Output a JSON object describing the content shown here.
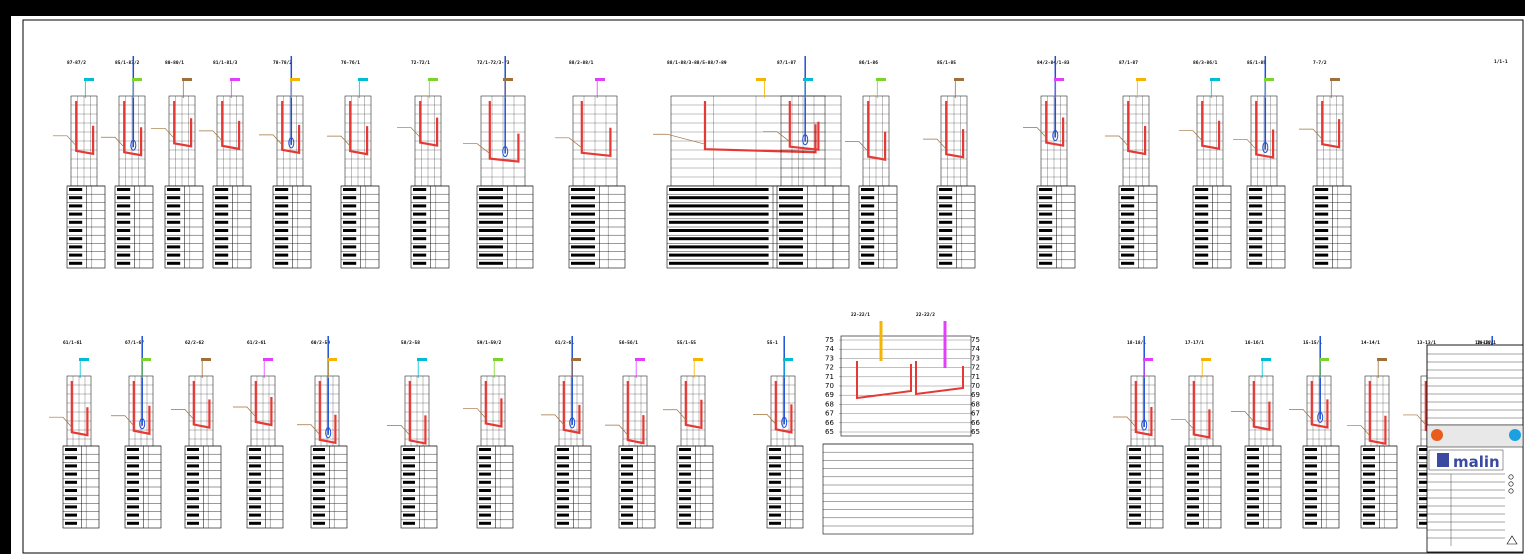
{
  "drawing": {
    "sheet_label": "1/1-1",
    "logo_text": "malin",
    "palette": {
      "pipe": "#e53935",
      "water": "#1e4fd6",
      "cyan": "#00bcd4",
      "green": "#7cd32c",
      "brown": "#a0703c",
      "magenta": "#e040fb",
      "yellow": "#f4b400"
    },
    "profile_scale": {
      "ticks": [
        "75",
        "74",
        "73",
        "72",
        "71",
        "70",
        "69",
        "68",
        "67",
        "66",
        "65"
      ],
      "ticks2": [
        "75",
        "74",
        "73",
        "72",
        "71",
        "70",
        "69",
        "68",
        "67",
        "66",
        "65"
      ]
    },
    "row1": [
      {
        "label": "87-87/2"
      },
      {
        "label": "85/1-83/2"
      },
      {
        "label": "80-80/1"
      },
      {
        "label": "81/1-81/3"
      },
      {
        "label": "78-78/2"
      },
      {
        "label": "76-76/1"
      },
      {
        "label": "72-72/1"
      },
      {
        "label": "72/1-72/3-73"
      },
      {
        "label": "88/2-88/1"
      },
      {
        "label": "88/1-88/3-88/5-88/7-89"
      },
      {
        "label": "87/1-87"
      },
      {
        "label": "86/1-86"
      },
      {
        "label": "85/1-85"
      },
      {
        "label": "84/2-84/1-83"
      },
      {
        "label": "87/1-87"
      },
      {
        "label": "86/3-86/1"
      },
      {
        "label": "85/1-85"
      },
      {
        "label": "7-7/2"
      }
    ],
    "row2": [
      {
        "label": "61/1-61"
      },
      {
        "label": "67/1-67"
      },
      {
        "label": "62/2-62"
      },
      {
        "label": "61/2-61"
      },
      {
        "label": "60/2-59"
      },
      {
        "label": "58/2-58"
      },
      {
        "label": "59/1-59/2"
      },
      {
        "label": "61/2-61"
      },
      {
        "label": "56-56/1"
      },
      {
        "label": "55/1-55"
      },
      {
        "label": "55-1"
      },
      {
        "label": "22-22/1"
      },
      {
        "label": "22-22/2"
      },
      {
        "label": "18-18/1"
      },
      {
        "label": "17-17/1"
      },
      {
        "label": "16-16/1"
      },
      {
        "label": "15-15/1"
      },
      {
        "label": "14-14/1"
      },
      {
        "label": "13-13/1"
      },
      {
        "label": "12-12/1"
      },
      {
        "label": "10-10/1"
      }
    ]
  }
}
